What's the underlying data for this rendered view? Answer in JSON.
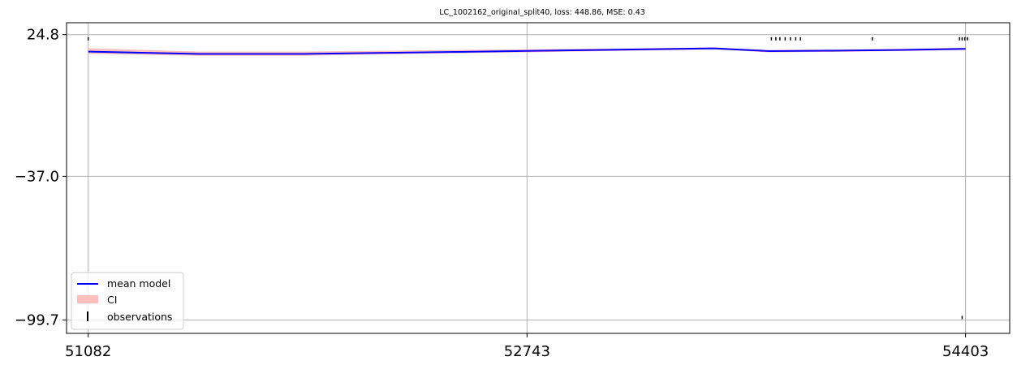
{
  "chart_data": {
    "type": "line",
    "title": "LC_1002162_original_split40, loss: 448.86, MSE: 0.43",
    "xlabel": "",
    "ylabel": "",
    "xlim": [
      51000,
      54570
    ],
    "ylim": [
      -105.5,
      30.0
    ],
    "x_ticks": [
      51082,
      52743,
      54403
    ],
    "y_ticks": [
      24.8,
      -37.0,
      -99.7
    ],
    "x_tick_labels": [
      "51082",
      "52743",
      "54403"
    ],
    "y_tick_labels": [
      "24.8",
      "−37.0",
      "−99.7"
    ],
    "grid": true,
    "legend_placement": "lower-left",
    "colors": {
      "mean": "#0000ff",
      "ci": "#ffbfbf",
      "obs": "#000000",
      "grid": "#b0b0b0"
    },
    "series": [
      {
        "name": "mean model",
        "kind": "line",
        "x": [
          51082,
          51500,
          51900,
          52300,
          52743,
          53200,
          53450,
          53660,
          53900,
          54150,
          54403
        ],
        "y": [
          17.4,
          16.4,
          16.4,
          17.0,
          17.7,
          18.4,
          18.8,
          17.6,
          17.8,
          18.1,
          18.6
        ]
      },
      {
        "name": "CI",
        "kind": "band",
        "x": [
          51082,
          51500,
          51900,
          52300,
          52743,
          53200,
          53450,
          53660,
          53900,
          54150,
          54403
        ],
        "lower": [
          16.4,
          15.6,
          15.6,
          16.4,
          17.1,
          17.9,
          18.3,
          17.1,
          17.3,
          17.6,
          18.1
        ],
        "upper": [
          18.9,
          17.4,
          17.4,
          17.9,
          18.4,
          18.9,
          19.2,
          18.1,
          18.3,
          18.6,
          19.1
        ]
      },
      {
        "name": "observations",
        "kind": "errorbar",
        "points": [
          {
            "x": 51082,
            "y": 23.0
          },
          {
            "x": 53668,
            "y": 23.0
          },
          {
            "x": 53685,
            "y": 23.0
          },
          {
            "x": 53700,
            "y": 23.0
          },
          {
            "x": 53720,
            "y": 23.0
          },
          {
            "x": 53740,
            "y": 23.0
          },
          {
            "x": 53760,
            "y": 23.0
          },
          {
            "x": 53778,
            "y": 23.0
          },
          {
            "x": 54050,
            "y": 23.0
          },
          {
            "x": 54380,
            "y": 23.0
          },
          {
            "x": 54390,
            "y": 23.0
          },
          {
            "x": 54400,
            "y": 23.0
          },
          {
            "x": 54410,
            "y": 23.0
          },
          {
            "x": 54390,
            "y": -98.6
          }
        ]
      }
    ]
  }
}
